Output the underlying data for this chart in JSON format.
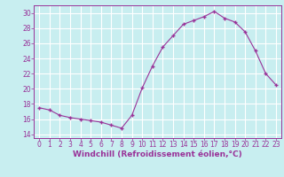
{
  "x": [
    0,
    1,
    2,
    3,
    4,
    5,
    6,
    7,
    8,
    9,
    10,
    11,
    12,
    13,
    14,
    15,
    16,
    17,
    18,
    19,
    20,
    21,
    22,
    23
  ],
  "y": [
    17.5,
    17.2,
    16.5,
    16.2,
    16.0,
    15.8,
    15.6,
    15.2,
    14.8,
    16.5,
    20.1,
    23.0,
    25.5,
    27.0,
    28.5,
    29.0,
    29.5,
    30.2,
    29.3,
    28.8,
    27.5,
    25.0,
    22.0,
    20.5
  ],
  "line_color": "#993399",
  "marker": "+",
  "marker_size": 3,
  "marker_linewidth": 1.0,
  "line_width": 0.8,
  "background_color": "#c8eef0",
  "grid_color": "#ffffff",
  "xlabel": "Windchill (Refroidissement éolien,°C)",
  "xlim": [
    -0.5,
    23.5
  ],
  "ylim": [
    13.5,
    31.0
  ],
  "yticks": [
    14,
    16,
    18,
    20,
    22,
    24,
    26,
    28,
    30
  ],
  "xticks": [
    0,
    1,
    2,
    3,
    4,
    5,
    6,
    7,
    8,
    9,
    10,
    11,
    12,
    13,
    14,
    15,
    16,
    17,
    18,
    19,
    20,
    21,
    22,
    23
  ],
  "tick_color": "#993399",
  "label_color": "#993399",
  "spine_color": "#993399",
  "xlabel_fontsize": 6.5,
  "tick_fontsize": 5.5
}
